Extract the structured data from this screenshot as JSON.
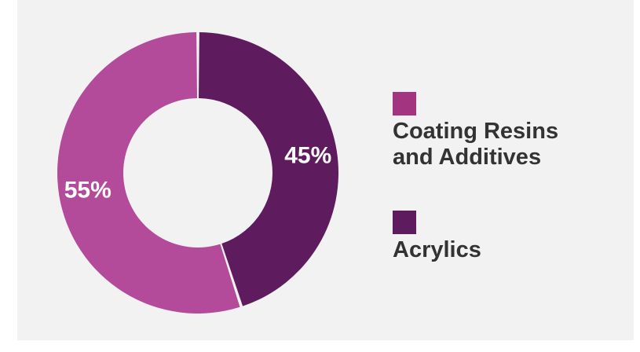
{
  "chart_data": {
    "type": "pie",
    "style": "donut",
    "title": "",
    "slices": [
      {
        "label": "Acrylics",
        "legend": "Acrylics",
        "value": 45,
        "display": "45%",
        "color": "#5e1b5e"
      },
      {
        "label": "Coating Resins and Additives",
        "legend": "Coating Resins\nand Additives",
        "value": 55,
        "display": "55%",
        "color": "#b44a9a"
      }
    ],
    "legend_position": "right",
    "legend_swatch_colors": {
      "Coating Resins and Additives": "#a3347f",
      "Acrylics": "#5e1b5e"
    }
  }
}
